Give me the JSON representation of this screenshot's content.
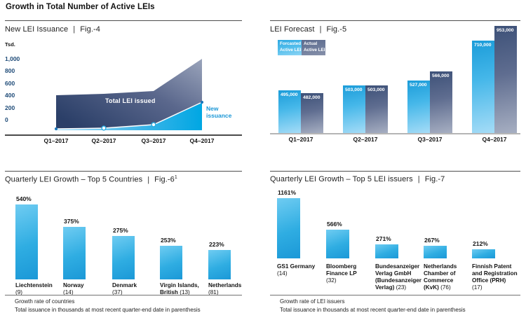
{
  "page": {
    "title": "Growth in Total Number of Active LEIs",
    "sep": "|"
  },
  "colors": {
    "cyan_accent": "#29abe2",
    "navy_dark": "#2b3f68",
    "slate_light": "#9aa4bb",
    "axis_tick_blue": "#1d4a77",
    "new_issuance_label_cyan": "#1b97d6"
  },
  "chart_data": [
    {
      "id": "fig4",
      "type": "area",
      "title": "New LEI Issuance",
      "fig": "Fig.-4",
      "unit_label": "Tsd.",
      "x": [
        "Q1–2017",
        "Q2–2017",
        "Q3–2017",
        "Q4–2017"
      ],
      "y_tick_labels": [
        "1,000",
        "800",
        "600",
        "400",
        "200",
        "0"
      ],
      "ylim": [
        0,
        1000
      ],
      "grid": false,
      "series": [
        {
          "name": "Total LEI issued",
          "values": [
            400,
            425,
            470,
            1000
          ]
        },
        {
          "name": "New issuance",
          "values": [
            0,
            10,
            40,
            290
          ]
        }
      ],
      "px": {
        "x": [
          35,
          103,
          174,
          243
        ],
        "total_y": [
          61,
          59,
          55,
          9
        ],
        "new_y": [
          109,
          108,
          103,
          71
        ],
        "base_y": 111
      }
    },
    {
      "id": "fig5",
      "type": "bar",
      "title": "LEI Forecast",
      "fig": "Fig.-5",
      "legend_position": "top-left",
      "categories": [
        "Q1–2017",
        "Q2–2017",
        "Q3–2017",
        "Q4–2017"
      ],
      "series": [
        {
          "name": "Forcasted Active LEI",
          "values": [
            495000,
            503000,
            527000,
            710000
          ],
          "labels": [
            "495,000",
            "503,000",
            "527,000",
            "710,000"
          ]
        },
        {
          "name": "Actual Active LEI",
          "values": [
            482000,
            503000,
            566000,
            953000
          ],
          "labels": [
            "482,000",
            "503,000",
            "566,000",
            "953,000"
          ]
        }
      ],
      "legend": [
        {
          "line1": "Forcasted",
          "line2": "Active LEI"
        },
        {
          "line1": "Actual",
          "line2": "Active LEI"
        }
      ],
      "px": {
        "f_h": [
          61,
          68,
          75,
          132
        ],
        "a_h": [
          57,
          68,
          88,
          153
        ]
      }
    },
    {
      "id": "fig6",
      "type": "bar",
      "title": "Quarterly LEI Growth – Top 5 Countries",
      "fig": "Fig.-6",
      "fig_sup": "1",
      "categories": [
        "Liechtenstein (9)",
        "Norway (14)",
        "Denmark (37)",
        "Virgin Islands, British (13)",
        "Netherlands (81)"
      ],
      "values": [
        540,
        375,
        275,
        253,
        223
      ],
      "value_labels": [
        "540%",
        "375%",
        "275%",
        "253%",
        "223%"
      ],
      "bars": [
        {
          "name_lines": [
            "Liechtenstein"
          ],
          "count": "(9)",
          "count_inline": false
        },
        {
          "name_lines": [
            "Norway"
          ],
          "count": "(14)",
          "count_inline": false
        },
        {
          "name_lines": [
            "Denmark"
          ],
          "count": "(37)",
          "count_inline": false
        },
        {
          "name_lines": [
            "Virgin Islands,",
            "British"
          ],
          "count": "(13)",
          "count_inline": true
        },
        {
          "name_lines": [
            "Netherlands"
          ],
          "count": "(81)",
          "count_inline": false
        }
      ],
      "footnotes": [
        "Growth rate of countries",
        "Total issuance in thousands at most recent quarter-end date in parenthesis"
      ],
      "px": {
        "h": [
          107,
          75,
          62,
          48,
          42
        ]
      }
    },
    {
      "id": "fig7",
      "type": "bar",
      "title": "Quarterly LEI Growth – Top 5 LEI issuers",
      "fig": "Fig.-7",
      "categories": [
        "GS1 Germany (14)",
        "Bloomberg Finance LP (32)",
        "Bundesanzeiger Verlag GmbH (Bundesanzeiger Verlag) (23)",
        "Netherlands Chamber of Commerce (KvK) (76)",
        "Finnish Patent and Registration Office (PRH) (17)"
      ],
      "values": [
        1161,
        566,
        271,
        267,
        212
      ],
      "value_labels": [
        "1161%",
        "566%",
        "271%",
        "267%",
        "212%"
      ],
      "bars": [
        {
          "name_lines": [
            "GS1 Germany"
          ],
          "count": "(14)",
          "count_inline": false
        },
        {
          "name_lines": [
            "Bloomberg",
            "Finance LP"
          ],
          "count": "(32)",
          "count_inline": false
        },
        {
          "name_lines": [
            "Bundesanzeiger",
            "Verlag GmbH",
            "(Bundesanzeiger",
            "Verlag)"
          ],
          "count": "(23)",
          "count_inline": true
        },
        {
          "name_lines": [
            "Netherlands",
            "Chamber of",
            "Commerce",
            "(KvK)"
          ],
          "count": "(76)",
          "count_inline": true
        },
        {
          "name_lines": [
            "Finnish Patent",
            "and Registration",
            "Office (PRH)"
          ],
          "count": "(17)",
          "count_inline": false
        }
      ],
      "footnotes": [
        "Growth rate of LEI issuers",
        "Total issuance in thousands at most recent quarter-end date in parenthesis"
      ],
      "px": {
        "h": [
          86,
          41,
          20,
          18,
          13
        ]
      }
    }
  ]
}
